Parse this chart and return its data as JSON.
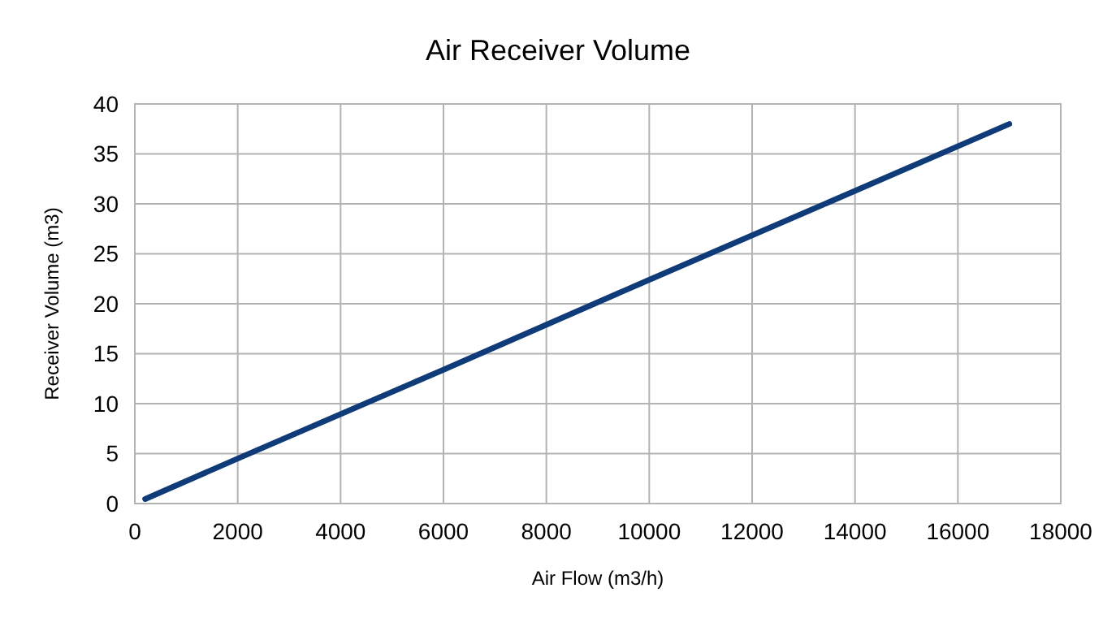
{
  "chart_data": {
    "type": "line",
    "title": "Air Receiver Volume",
    "xlabel": "Air Flow (m3/h)",
    "ylabel": "Receiver Volume (m3)",
    "x": [
      200,
      2000,
      6000,
      10000,
      14000,
      17000
    ],
    "series": [
      {
        "color": "#0f3c78",
        "values": [
          0.45,
          4.5,
          13.4,
          22.4,
          31.3,
          38
        ]
      }
    ],
    "xlim": [
      0,
      18000
    ],
    "xticks": [
      0,
      2000,
      4000,
      6000,
      8000,
      10000,
      12000,
      14000,
      16000,
      18000
    ],
    "ylim": [
      0,
      40
    ],
    "yticks": [
      0,
      5,
      10,
      15,
      20,
      25,
      30,
      35,
      40
    ],
    "grid": true,
    "marker": "none",
    "line_style": "solid"
  }
}
